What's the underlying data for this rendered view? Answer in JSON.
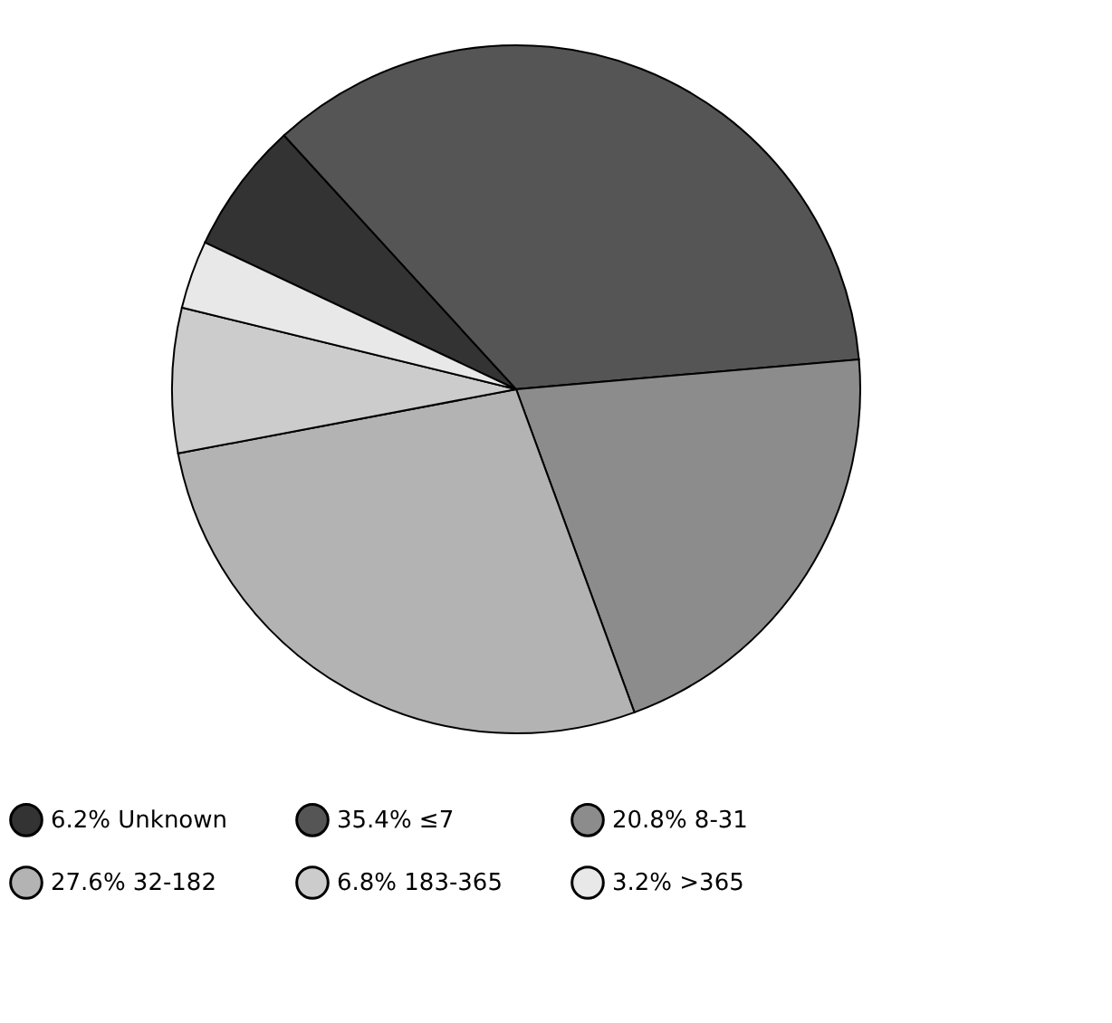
{
  "chart_data": {
    "type": "pie",
    "categories": [
      "Unknown",
      "≤7",
      "8-31",
      "32-182",
      "183-365",
      ">365"
    ],
    "values": [
      6.2,
      35.4,
      20.8,
      27.6,
      6.8,
      3.2
    ],
    "value_labels": [
      "6.2%",
      "35.4%",
      "20.8%",
      "27.6%",
      "6.8%",
      "3.2%"
    ],
    "colors": [
      "#333333",
      "#555555",
      "#8c8c8c",
      "#b3b3b3",
      "#cccccc",
      "#e8e8e8"
    ],
    "legend": "bottom"
  }
}
